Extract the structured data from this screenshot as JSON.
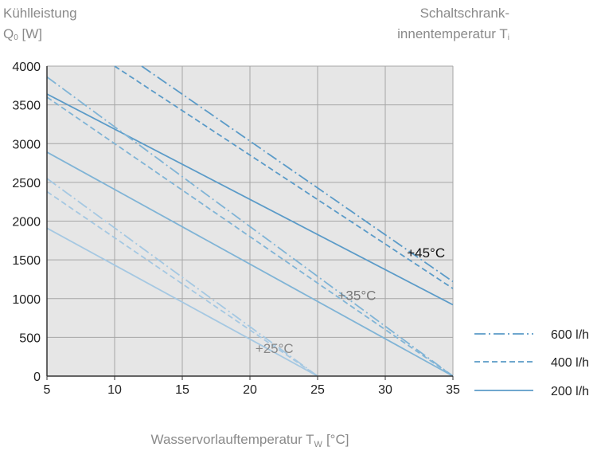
{
  "chart_data": {
    "type": "line",
    "ylabel": {
      "text": "Kühlleistung",
      "symbol": "Q",
      "sub": "0",
      "unit": "[W]"
    },
    "ti_label": {
      "line1": "Schaltschrank-",
      "line2": "innentemperatur T",
      "sub": "i"
    },
    "xlabel": {
      "text": "Wasservorlauftemperatur T",
      "sub": "W",
      "unit": "[°C]"
    },
    "xlim": [
      5,
      35
    ],
    "ylim": [
      0,
      4000
    ],
    "x_ticks": [
      "5",
      "10",
      "15",
      "20",
      "25",
      "30",
      "35"
    ],
    "y_ticks": [
      "0",
      "500",
      "1000",
      "1500",
      "2000",
      "2500",
      "3000",
      "3500",
      "4000"
    ],
    "grid": true,
    "plot_background": "#e6e6e6",
    "legend": {
      "position": "right-bottom",
      "entries": [
        {
          "label": "600 l/h",
          "dash": "dashdot"
        },
        {
          "label": "400 l/h",
          "dash": "dashed"
        },
        {
          "label": "200 l/h",
          "dash": "solid"
        }
      ]
    },
    "series": [
      {
        "temp": "+45°C",
        "flow": "600 l/h",
        "dash": "dashdot",
        "color": "#5b9bc8",
        "points": [
          [
            12,
            4000
          ],
          [
            35,
            1220
          ]
        ]
      },
      {
        "temp": "+45°C",
        "flow": "400 l/h",
        "dash": "dashed",
        "color": "#5b9bc8",
        "points": [
          [
            10,
            4000
          ],
          [
            35,
            1130
          ]
        ]
      },
      {
        "temp": "+45°C",
        "flow": "200 l/h",
        "dash": "solid",
        "color": "#5b9bc8",
        "points": [
          [
            5,
            3640
          ],
          [
            35,
            920
          ]
        ]
      },
      {
        "temp": "+35°C",
        "flow": "600 l/h",
        "dash": "dashdot",
        "color": "#80b4d6",
        "points": [
          [
            5,
            3860
          ],
          [
            35,
            0
          ]
        ]
      },
      {
        "temp": "+35°C",
        "flow": "400 l/h",
        "dash": "dashed",
        "color": "#80b4d6",
        "points": [
          [
            5,
            3600
          ],
          [
            35,
            0
          ]
        ]
      },
      {
        "temp": "+35°C",
        "flow": "200 l/h",
        "dash": "solid",
        "color": "#80b4d6",
        "points": [
          [
            5,
            2890
          ],
          [
            35,
            0
          ]
        ]
      },
      {
        "temp": "+25°C",
        "flow": "600 l/h",
        "dash": "dashdot",
        "color": "#a5c8e2",
        "points": [
          [
            5,
            2550
          ],
          [
            25,
            0
          ]
        ]
      },
      {
        "temp": "+25°C",
        "flow": "400 l/h",
        "dash": "dashed",
        "color": "#a5c8e2",
        "points": [
          [
            5,
            2380
          ],
          [
            25,
            0
          ]
        ]
      },
      {
        "temp": "+25°C",
        "flow": "200 l/h",
        "dash": "solid",
        "color": "#a5c8e2",
        "points": [
          [
            5,
            1910
          ],
          [
            25,
            0
          ]
        ]
      }
    ],
    "annotations": [
      {
        "text": "+45°C",
        "x": 31.6,
        "y": 1530,
        "color": "#111111"
      },
      {
        "text": "+35°C",
        "x": 26.5,
        "y": 980,
        "color": "#777777"
      },
      {
        "text": "+25°C",
        "x": 20.4,
        "y": 300,
        "color": "#888888"
      }
    ]
  }
}
